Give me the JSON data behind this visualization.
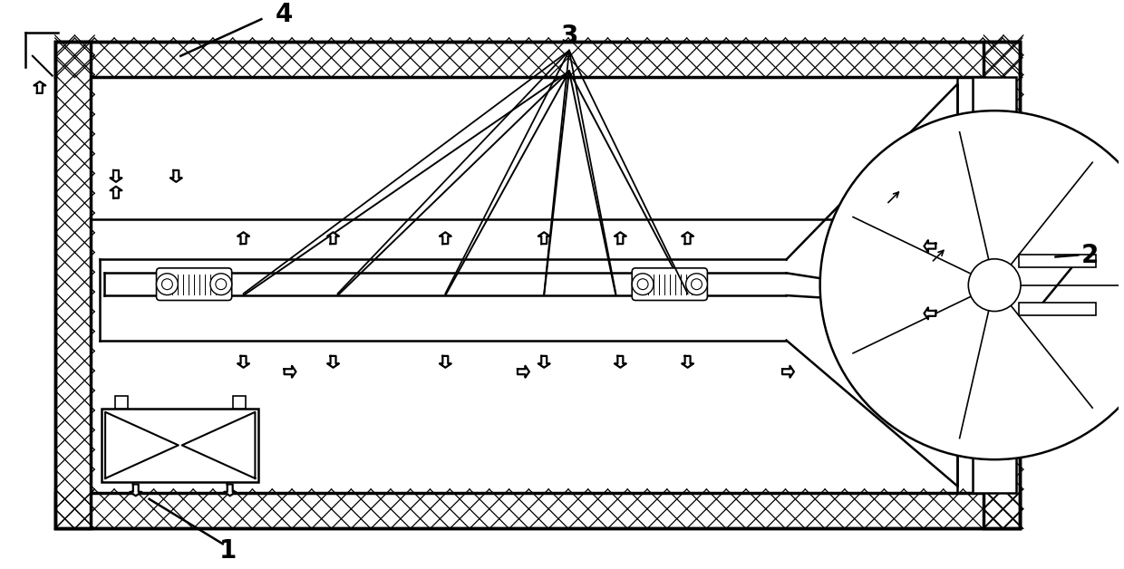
{
  "bg_color": "#ffffff",
  "line_color": "#000000",
  "label_fontsize": 20,
  "lw_outer": 2.5,
  "lw_inner": 1.8,
  "lw_thin": 1.2,
  "insulation_cell": 22
}
